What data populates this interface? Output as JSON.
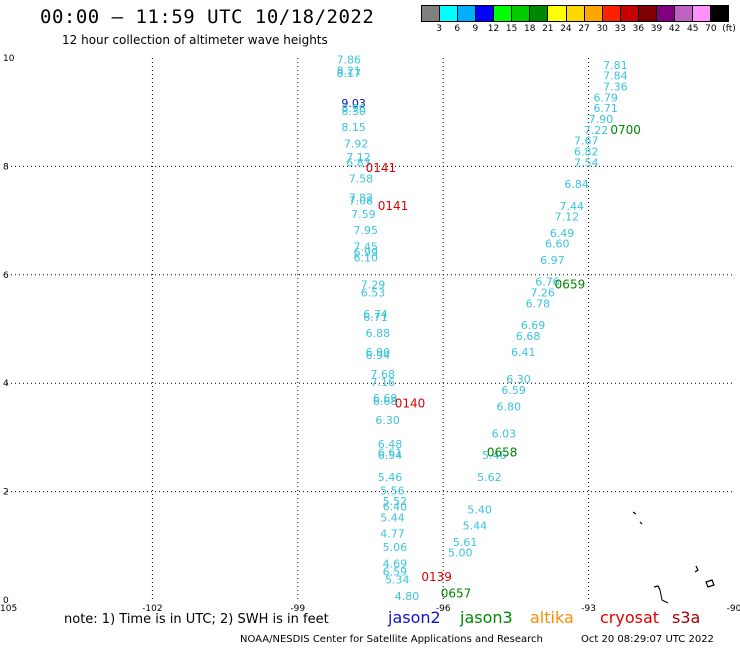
{
  "header": {
    "title": "00:00 — 11:59 UTC 10/18/2022",
    "subtitle": "12 hour collection of altimeter wave heights"
  },
  "color_scale": {
    "colors": [
      "#808080",
      "#00ffff",
      "#00b0ff",
      "#0000ff",
      "#00ff00",
      "#00cc00",
      "#008800",
      "#ffff00",
      "#ffd700",
      "#ffa500",
      "#ff2000",
      "#c80000",
      "#800000",
      "#800080",
      "#c060c0",
      "#ff90ff",
      "#000000"
    ],
    "labels": [
      "3",
      "6",
      "9",
      "12",
      "15",
      "18",
      "21",
      "24",
      "27",
      "30",
      "33",
      "36",
      "39",
      "42",
      "45",
      "70",
      "(ft)"
    ]
  },
  "map": {
    "lon_labels": [
      "-105",
      "-102",
      "-99",
      "-96",
      "-93",
      "-90"
    ],
    "lat_labels": [
      "0",
      "2",
      "4",
      "6",
      "8",
      "10"
    ],
    "observations_west_track": [
      {
        "text": "7.86",
        "lon": -98.2,
        "lat": 9.9,
        "color": "#3cc4dc"
      },
      {
        "text": "8.21",
        "lon": -98.2,
        "lat": 9.7,
        "color": "#3cc4dc"
      },
      {
        "text": "8.17",
        "lon": -98.2,
        "lat": 9.65,
        "color": "#3cc4dc"
      },
      {
        "text": "9.03",
        "lon": -98.1,
        "lat": 9.1,
        "color": "#1010d0"
      },
      {
        "text": "8.96",
        "lon": -98.1,
        "lat": 9.0,
        "color": "#3cc4dc"
      },
      {
        "text": "8.30",
        "lon": -98.1,
        "lat": 8.95,
        "color": "#3cc4dc"
      },
      {
        "text": "8.15",
        "lon": -98.1,
        "lat": 8.65,
        "color": "#3cc4dc"
      },
      {
        "text": "7.92",
        "lon": -98.05,
        "lat": 8.35,
        "color": "#3cc4dc"
      },
      {
        "text": "7.12",
        "lon": -98.0,
        "lat": 8.1,
        "color": "#3cc4dc"
      },
      {
        "text": "6.83",
        "lon": -98.0,
        "lat": 8.0,
        "color": "#3cc4dc"
      },
      {
        "text": "7.58",
        "lon": -97.95,
        "lat": 7.7,
        "color": "#3cc4dc"
      },
      {
        "text": "7.82",
        "lon": -97.95,
        "lat": 7.35,
        "color": "#3cc4dc"
      },
      {
        "text": "7.08",
        "lon": -97.95,
        "lat": 7.3,
        "color": "#3cc4dc"
      },
      {
        "text": "7.59",
        "lon": -97.9,
        "lat": 7.05,
        "color": "#3cc4dc"
      },
      {
        "text": "7.95",
        "lon": -97.85,
        "lat": 6.75,
        "color": "#3cc4dc"
      },
      {
        "text": "7.45",
        "lon": -97.85,
        "lat": 6.45,
        "color": "#3cc4dc"
      },
      {
        "text": "6.99",
        "lon": -97.85,
        "lat": 6.35,
        "color": "#3cc4dc"
      },
      {
        "text": "6.10",
        "lon": -97.85,
        "lat": 6.25,
        "color": "#3cc4dc"
      },
      {
        "text": "7.29",
        "lon": -97.7,
        "lat": 5.75,
        "color": "#3cc4dc"
      },
      {
        "text": "6.53",
        "lon": -97.7,
        "lat": 5.6,
        "color": "#3cc4dc"
      },
      {
        "text": "6.74",
        "lon": -97.65,
        "lat": 5.2,
        "color": "#3cc4dc"
      },
      {
        "text": "6.71",
        "lon": -97.65,
        "lat": 5.15,
        "color": "#3cc4dc"
      },
      {
        "text": "6.88",
        "lon": -97.6,
        "lat": 4.85,
        "color": "#3cc4dc"
      },
      {
        "text": "6.90",
        "lon": -97.6,
        "lat": 4.5,
        "color": "#3cc4dc"
      },
      {
        "text": "6.94",
        "lon": -97.6,
        "lat": 4.45,
        "color": "#3cc4dc"
      },
      {
        "text": "7.68",
        "lon": -97.5,
        "lat": 4.1,
        "color": "#3cc4dc"
      },
      {
        "text": "7.16",
        "lon": -97.5,
        "lat": 3.95,
        "color": "#3cc4dc"
      },
      {
        "text": "6.69",
        "lon": -97.45,
        "lat": 3.65,
        "color": "#3cc4dc"
      },
      {
        "text": "6.68",
        "lon": -97.45,
        "lat": 3.6,
        "color": "#3cc4dc"
      },
      {
        "text": "6.30",
        "lon": -97.4,
        "lat": 3.25,
        "color": "#3cc4dc"
      },
      {
        "text": "6.48",
        "lon": -97.35,
        "lat": 2.8,
        "color": "#3cc4dc"
      },
      {
        "text": "6.61",
        "lon": -97.35,
        "lat": 2.65,
        "color": "#3cc4dc"
      },
      {
        "text": "6.54",
        "lon": -97.35,
        "lat": 2.6,
        "color": "#3cc4dc"
      },
      {
        "text": "5.46",
        "lon": -97.35,
        "lat": 2.2,
        "color": "#3cc4dc"
      },
      {
        "text": "5.56",
        "lon": -97.3,
        "lat": 1.95,
        "color": "#3cc4dc"
      },
      {
        "text": "5.52",
        "lon": -97.25,
        "lat": 1.75,
        "color": "#3cc4dc"
      },
      {
        "text": "6.40",
        "lon": -97.25,
        "lat": 1.65,
        "color": "#3cc4dc"
      },
      {
        "text": "5.44",
        "lon": -97.3,
        "lat": 1.45,
        "color": "#3cc4dc"
      },
      {
        "text": "4.77",
        "lon": -97.3,
        "lat": 1.15,
        "color": "#3cc4dc"
      },
      {
        "text": "5.06",
        "lon": -97.25,
        "lat": 0.9,
        "color": "#3cc4dc"
      },
      {
        "text": "4.69",
        "lon": -97.25,
        "lat": 0.6,
        "color": "#3cc4dc"
      },
      {
        "text": "6.59",
        "lon": -97.25,
        "lat": 0.45,
        "color": "#3cc4dc"
      },
      {
        "text": "5.34",
        "lon": -97.2,
        "lat": 0.3,
        "color": "#3cc4dc"
      },
      {
        "text": "4.80",
        "lon": -97.0,
        "lat": 0.0,
        "color": "#3cc4dc"
      }
    ],
    "observations_east_track": [
      {
        "text": "7.81",
        "lon": -92.7,
        "lat": 9.8,
        "color": "#3cc4dc"
      },
      {
        "text": "7.84",
        "lon": -92.7,
        "lat": 9.6,
        "color": "#3cc4dc"
      },
      {
        "text": "7.36",
        "lon": -92.7,
        "lat": 9.4,
        "color": "#3cc4dc"
      },
      {
        "text": "6.79",
        "lon": -92.9,
        "lat": 9.2,
        "color": "#3cc4dc"
      },
      {
        "text": "6.71",
        "lon": -92.9,
        "lat": 9.0,
        "color": "#3cc4dc"
      },
      {
        "text": "7.90",
        "lon": -93.0,
        "lat": 8.8,
        "color": "#3cc4dc"
      },
      {
        "text": "7.22",
        "lon": -93.1,
        "lat": 8.6,
        "color": "#3cc4dc"
      },
      {
        "text": "7.67",
        "lon": -93.3,
        "lat": 8.4,
        "color": "#3cc4dc"
      },
      {
        "text": "6.82",
        "lon": -93.3,
        "lat": 8.2,
        "color": "#3cc4dc"
      },
      {
        "text": "7.54",
        "lon": -93.3,
        "lat": 8.0,
        "color": "#3cc4dc"
      },
      {
        "text": "6.84",
        "lon": -93.5,
        "lat": 7.6,
        "color": "#3cc4dc"
      },
      {
        "text": "7.44",
        "lon": -93.6,
        "lat": 7.2,
        "color": "#3cc4dc"
      },
      {
        "text": "7.12",
        "lon": -93.7,
        "lat": 7.0,
        "color": "#3cc4dc"
      },
      {
        "text": "6.49",
        "lon": -93.8,
        "lat": 6.7,
        "color": "#3cc4dc"
      },
      {
        "text": "6.60",
        "lon": -93.9,
        "lat": 6.5,
        "color": "#3cc4dc"
      },
      {
        "text": "6.97",
        "lon": -94.0,
        "lat": 6.2,
        "color": "#3cc4dc"
      },
      {
        "text": "6.76",
        "lon": -94.1,
        "lat": 5.8,
        "color": "#3cc4dc"
      },
      {
        "text": "7.26",
        "lon": -94.2,
        "lat": 5.6,
        "color": "#3cc4dc"
      },
      {
        "text": "6.78",
        "lon": -94.3,
        "lat": 5.4,
        "color": "#3cc4dc"
      },
      {
        "text": "6.69",
        "lon": -94.4,
        "lat": 5.0,
        "color": "#3cc4dc"
      },
      {
        "text": "6.68",
        "lon": -94.5,
        "lat": 4.8,
        "color": "#3cc4dc"
      },
      {
        "text": "6.41",
        "lon": -94.6,
        "lat": 4.5,
        "color": "#3cc4dc"
      },
      {
        "text": "6.30",
        "lon": -94.7,
        "lat": 4.0,
        "color": "#3cc4dc"
      },
      {
        "text": "6.59",
        "lon": -94.8,
        "lat": 3.8,
        "color": "#3cc4dc"
      },
      {
        "text": "6.80",
        "lon": -94.9,
        "lat": 3.5,
        "color": "#3cc4dc"
      },
      {
        "text": "6.03",
        "lon": -95.0,
        "lat": 3.0,
        "color": "#3cc4dc"
      },
      {
        "text": "5.46",
        "lon": -95.2,
        "lat": 2.6,
        "color": "#3cc4dc"
      },
      {
        "text": "5.62",
        "lon": -95.3,
        "lat": 2.2,
        "color": "#3cc4dc"
      },
      {
        "text": "5.40",
        "lon": -95.5,
        "lat": 1.6,
        "color": "#3cc4dc"
      },
      {
        "text": "5.44",
        "lon": -95.6,
        "lat": 1.3,
        "color": "#3cc4dc"
      },
      {
        "text": "5.61",
        "lon": -95.8,
        "lat": 1.0,
        "color": "#3cc4dc"
      },
      {
        "text": "5.00",
        "lon": -95.9,
        "lat": 0.8,
        "color": "#3cc4dc"
      }
    ],
    "time_labels": [
      {
        "text": "0141",
        "lon": -97.6,
        "lat": 7.9,
        "color": "#e00000"
      },
      {
        "text": "0141",
        "lon": -97.35,
        "lat": 7.2,
        "color": "#e00000"
      },
      {
        "text": "0140",
        "lon": -97.0,
        "lat": 3.55,
        "color": "#e00000"
      },
      {
        "text": "0139",
        "lon": -96.45,
        "lat": 0.35,
        "color": "#e00000"
      },
      {
        "text": "0700",
        "lon": -92.55,
        "lat": 8.6,
        "color": "#008800"
      },
      {
        "text": "0659",
        "lon": -93.7,
        "lat": 5.75,
        "color": "#008800"
      },
      {
        "text": "0658",
        "lon": -95.1,
        "lat": 2.65,
        "color": "#008800"
      },
      {
        "text": "0657",
        "lon": -96.05,
        "lat": 0.05,
        "color": "#008800"
      }
    ]
  },
  "footer": {
    "note": "note: 1) Time is in UTC; 2) SWH is in feet",
    "satellites": [
      {
        "name": "jason2",
        "color": "#1010d0"
      },
      {
        "name": "jason3",
        "color": "#008800"
      },
      {
        "name": "altika",
        "color": "#ff8c00"
      },
      {
        "name": "cryosat",
        "color": "#e00000"
      },
      {
        "name": "s3a",
        "color": "#a00000"
      }
    ],
    "credit": "NOAA/NESDIS Center for Satellite Applications and Research",
    "generated": "Oct 20 08:29:07 UTC 2022"
  }
}
